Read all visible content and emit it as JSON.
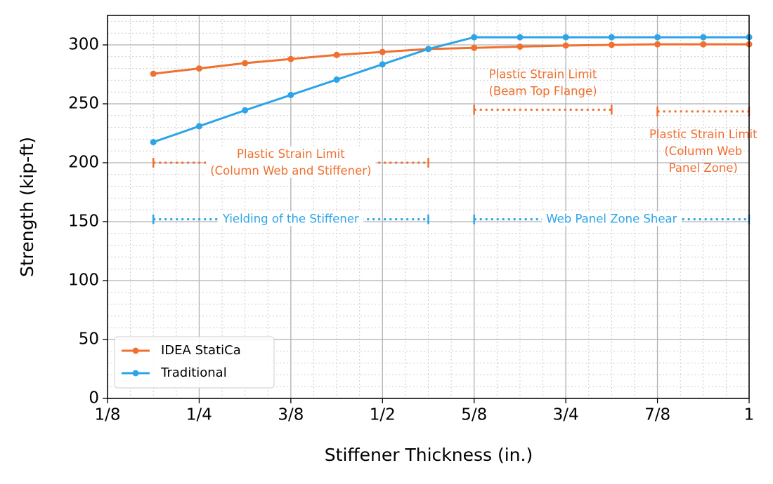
{
  "chart_data": {
    "type": "line",
    "x_label": "Stiffener Thickness (in.)",
    "y_label": "Strength (kip-ft)",
    "x": [
      0.1875,
      0.25,
      0.3125,
      0.375,
      0.4375,
      0.5,
      0.5625,
      0.625,
      0.6875,
      0.75,
      0.8125,
      0.875,
      0.9375,
      1.0
    ],
    "series": [
      {
        "name": "IDEA StatiCa",
        "color": "#f07030",
        "values": [
          275.5,
          280,
          284.5,
          288,
          291.5,
          294,
          296.5,
          297.5,
          298.5,
          299.5,
          300,
          300.5,
          300.5,
          300.5
        ]
      },
      {
        "name": "Traditional",
        "color": "#2ca4e8",
        "values": [
          217.5,
          231,
          244.5,
          257.5,
          270.5,
          283.5,
          296.5,
          306.5,
          306.5,
          306.5,
          306.5,
          306.5,
          306.5,
          306.5
        ]
      }
    ],
    "xlim": [
      0.125,
      1.0
    ],
    "ylim": [
      0,
      325
    ],
    "xticks": [
      {
        "value": 0.125,
        "label": "1/8"
      },
      {
        "value": 0.25,
        "label": "1/4"
      },
      {
        "value": 0.375,
        "label": "3/8"
      },
      {
        "value": 0.5,
        "label": "1/2"
      },
      {
        "value": 0.625,
        "label": "5/8"
      },
      {
        "value": 0.75,
        "label": "3/4"
      },
      {
        "value": 0.875,
        "label": "7/8"
      },
      1
    ],
    "yticks": [
      0,
      50,
      100,
      150,
      200,
      250,
      300
    ],
    "grid": true,
    "legend": "lower left",
    "annotations": [
      {
        "text": [
          "Plastic Strain Limit",
          "(Column Web and Stiffener)"
        ],
        "x": [
          0.1875,
          0.5625
        ],
        "y": 200,
        "color": "#f07030",
        "placement": "center"
      },
      {
        "text": [
          "Plastic Strain Limit",
          "(Beam Top Flange)"
        ],
        "x": [
          0.625,
          0.8125
        ],
        "y": 245,
        "color": "#f07030",
        "placement": "above"
      },
      {
        "text": [
          "Plastic Strain Limit",
          "(Column Web",
          "Panel Zone)"
        ],
        "x": [
          0.875,
          1.0
        ],
        "y": 243.5,
        "color": "#f07030",
        "placement": "below"
      },
      {
        "text": [
          "Yielding of the Stiffener"
        ],
        "x": [
          0.1875,
          0.5625
        ],
        "y": 152,
        "color": "#2ca4e8",
        "placement": "center"
      },
      {
        "text": [
          "Web Panel Zone Shear"
        ],
        "x": [
          0.625,
          1.0
        ],
        "y": 152,
        "color": "#2ca4e8",
        "placement": "center"
      }
    ]
  }
}
